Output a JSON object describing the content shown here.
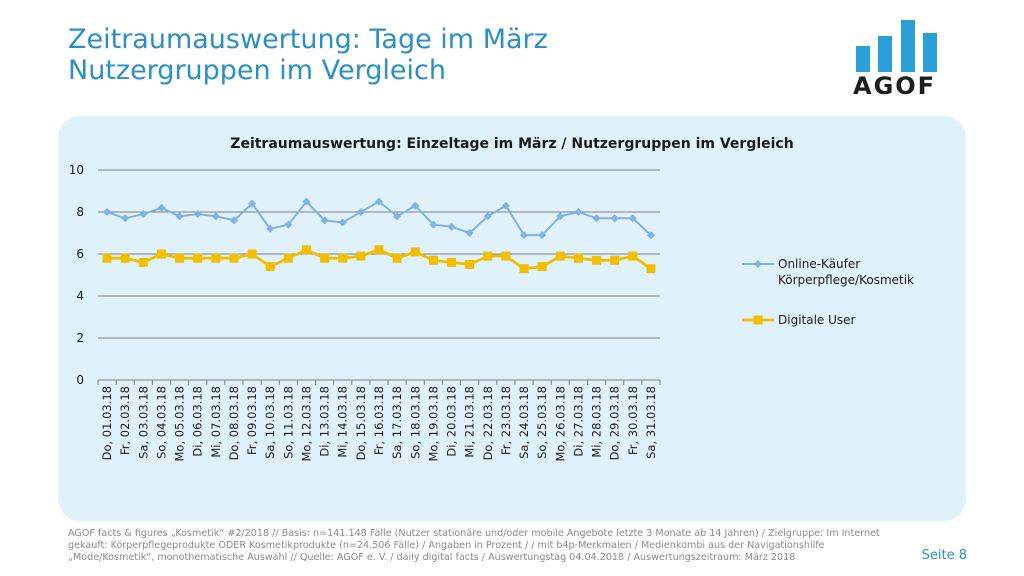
{
  "header": {
    "title_line1": "Zeitraumauswertung: Tage im März",
    "title_line2": "Nutzergruppen im Vergleich"
  },
  "logo": {
    "text": "AGOF"
  },
  "chart_data": {
    "type": "line",
    "title": "Zeitraumauswertung: Einzeltage im März / Nutzergruppen im Vergleich",
    "ylim": [
      0,
      10
    ],
    "yticks": [
      0,
      2,
      4,
      6,
      8,
      10
    ],
    "grid": true,
    "legend_position": "right",
    "categories": [
      "Do, 01.03.18",
      "Fr, 02.03.18",
      "Sa, 03.03.18",
      "So, 04.03.18",
      "Mo, 05.03.18",
      "Di, 06.03.18",
      "Mi, 07.03.18",
      "Do, 08.03.18",
      "Fr, 09.03.18",
      "Sa, 10.03.18",
      "So, 11.03.18",
      "Mo, 12.03.18",
      "Di, 13.03.18",
      "Mi, 14.03.18",
      "Do, 15.03.18",
      "Fr, 16.03.18",
      "Sa, 17.03.18",
      "So, 18.03.18",
      "Mo, 19.03.18",
      "Di, 20.03.18",
      "Mi, 21.03.18",
      "Do, 22.03.18",
      "Fr, 23.03.18",
      "Sa, 24.03.18",
      "So, 25.03.18",
      "Mo, 26.03.18",
      "Di, 27.03.18",
      "Mi, 28.03.18",
      "Do, 29.03.18",
      "Fr, 30.03.18",
      "Sa, 31.03.18"
    ],
    "series": [
      {
        "name": "Online-Käufer Körperpflege/Kosmetik",
        "legend_lines": [
          "Online-Käufer",
          "Körperpflege/Kosmetik"
        ],
        "color": "#7fb2e5",
        "marker": "diamond",
        "values": [
          8.0,
          7.7,
          7.9,
          8.2,
          7.8,
          7.9,
          7.8,
          7.6,
          8.4,
          7.2,
          7.4,
          8.5,
          7.6,
          7.5,
          8.0,
          8.5,
          7.8,
          8.3,
          7.4,
          7.3,
          7.0,
          7.8,
          8.3,
          6.9,
          6.9,
          7.8,
          8.0,
          7.7,
          7.7,
          7.7,
          6.9
        ]
      },
      {
        "name": "Digitale User",
        "legend_lines": [
          "Digitale User"
        ],
        "color": "#f2bf00",
        "marker": "square",
        "values": [
          5.8,
          5.8,
          5.6,
          6.0,
          5.8,
          5.8,
          5.8,
          5.8,
          6.0,
          5.4,
          5.8,
          6.2,
          5.8,
          5.8,
          5.9,
          6.2,
          5.8,
          6.1,
          5.7,
          5.6,
          5.5,
          5.9,
          5.9,
          5.3,
          5.4,
          5.9,
          5.8,
          5.7,
          5.7,
          5.9,
          5.3
        ]
      }
    ]
  },
  "footer": {
    "note_line1": "AGOF facts & figures „Kosmetik“ #2/2018 // Basis: n=141.148 Fälle (Nutzer stationäre und/oder mobile Angebote letzte 3 Monate ab 14 Jahren) / Zielgruppe: Im Internet",
    "note_line2": "gekauft: Körperpflegeprodukte ODER Kosmetikprodukte (n=24.506 Fälle) / Angaben in Prozent / / mit b4p-Merkmalen / Medienkombi aus der Navigationshilfe",
    "note_line3": "„Mode/Kosmetik“, monothematische Auswahl // Quelle: AGOF e. V. / daily digital facts / Auswertungstag 04.04.2018 / Auswertungszeitraum: März 2018",
    "page_label": "Seite 8"
  },
  "colors": {
    "accent": "#2b8fc7",
    "panel": "#dff1fb",
    "series1": "#7fb2e5",
    "series2": "#f2bf00",
    "gridline": "#7f7f7f"
  }
}
